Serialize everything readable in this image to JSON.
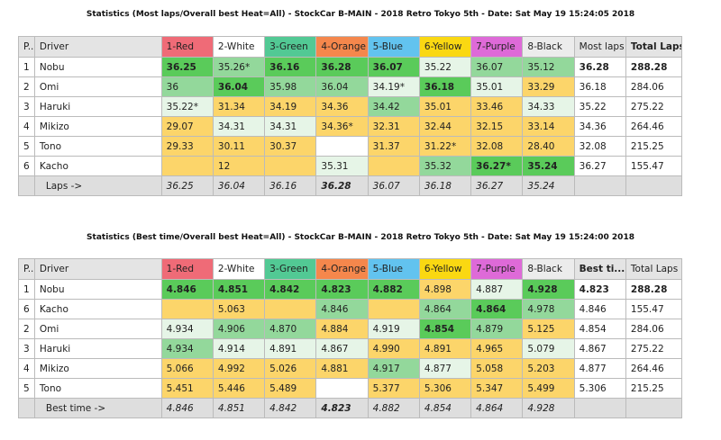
{
  "tables": [
    {
      "title": "Statistics (Most laps/Overall best Heat=All) - StockCar B-MAIN - 2018 Retro Tokyo 5th - Date: Sat May 19 15:24:05 2018",
      "headers": [
        "P...",
        "Driver",
        "1-Red",
        "2-White",
        "3-Green",
        "4-Orange",
        "5-Blue",
        "6-Yellow",
        "7-Purple",
        "8-Black",
        "Most laps",
        "Total Laps"
      ],
      "bold_header": 11,
      "rows": [
        {
          "pos": "1",
          "driver": "Nobu",
          "cells": [
            "36.25",
            "35.26*",
            "36.16",
            "36.28",
            "36.07",
            "35.22",
            "36.07",
            "35.12"
          ],
          "styles": "GMGGGLMM",
          "best": "36.28",
          "total": "288.28",
          "bold": true
        },
        {
          "pos": "2",
          "driver": "Omi",
          "cells": [
            "36",
            "36.04",
            "35.98",
            "36.04",
            "34.19*",
            "36.18",
            "35.01",
            "33.29"
          ],
          "styles": "MGMMLGLY",
          "best": "36.18",
          "total": "284.06"
        },
        {
          "pos": "3",
          "driver": "Haruki",
          "cells": [
            "35.22*",
            "31.34",
            "34.19",
            "34.36",
            "34.42",
            "35.01",
            "33.46",
            "34.33"
          ],
          "styles": "LYYYMYYL",
          "best": "35.22",
          "total": "275.22"
        },
        {
          "pos": "4",
          "driver": "Mikizo",
          "cells": [
            "29.07",
            "34.31",
            "34.31",
            "34.36*",
            "32.31",
            "32.44",
            "32.15",
            "33.14"
          ],
          "styles": "YLLYYYYY",
          "best": "34.36",
          "total": "264.46"
        },
        {
          "pos": "5",
          "driver": "Tono",
          "cells": [
            "29.33",
            "30.11",
            "30.37",
            "",
            "31.37",
            "31.22*",
            "32.08",
            "28.40"
          ],
          "styles": "YYYWYYYY",
          "best": "32.08",
          "total": "215.25"
        },
        {
          "pos": "6",
          "driver": "Kacho",
          "cells": [
            "",
            "12",
            "",
            "35.31",
            "",
            "35.32",
            "36.27*",
            "35.24"
          ],
          "styles": "YYYLYMGG",
          "best": "36.27",
          "total": "155.47"
        }
      ],
      "footer": {
        "label": "Laps ->",
        "values": [
          "36.25",
          "36.04",
          "36.16",
          "36.28",
          "36.07",
          "36.18",
          "36.27",
          "35.24"
        ],
        "bold_index": 3
      }
    },
    {
      "title": "Statistics (Best time/Overall best Heat=All) - StockCar B-MAIN - 2018 Retro Tokyo 5th - Date: Sat May 19 15:24:00 2018",
      "headers": [
        "P...",
        "Driver",
        "1-Red",
        "2-White",
        "3-Green",
        "4-Orange",
        "5-Blue",
        "6-Yellow",
        "7-Purple",
        "8-Black",
        "Best ti...",
        "Total Laps"
      ],
      "bold_header": 10,
      "rows": [
        {
          "pos": "1",
          "driver": "Nobu",
          "cells": [
            "4.846",
            "4.851",
            "4.842",
            "4.823",
            "4.882",
            "4.898",
            "4.887",
            "4.928"
          ],
          "styles": "GGGGGYLG",
          "best": "4.823",
          "total": "288.28",
          "bold": true
        },
        {
          "pos": "6",
          "driver": "Kacho",
          "cells": [
            "",
            "5.063",
            "",
            "4.846",
            "",
            "4.864",
            "4.864",
            "4.978"
          ],
          "styles": "YYYMYMGM",
          "best": "4.846",
          "total": "155.47"
        },
        {
          "pos": "2",
          "driver": "Omi",
          "cells": [
            "4.934",
            "4.906",
            "4.870",
            "4.884",
            "4.919",
            "4.854",
            "4.879",
            "5.125"
          ],
          "styles": "LMMYLGMY",
          "best": "4.854",
          "total": "284.06"
        },
        {
          "pos": "3",
          "driver": "Haruki",
          "cells": [
            "4.934",
            "4.914",
            "4.891",
            "4.867",
            "4.990",
            "4.891",
            "4.965",
            "5.079"
          ],
          "styles": "MLLLYYYL",
          "best": "4.867",
          "total": "275.22"
        },
        {
          "pos": "4",
          "driver": "Mikizo",
          "cells": [
            "5.066",
            "4.992",
            "5.026",
            "4.881",
            "4.917",
            "4.877",
            "5.058",
            "5.203"
          ],
          "styles": "YYYYMLYY",
          "best": "4.877",
          "total": "264.46"
        },
        {
          "pos": "5",
          "driver": "Tono",
          "cells": [
            "5.451",
            "5.446",
            "5.489",
            "",
            "5.377",
            "5.306",
            "5.347",
            "5.499"
          ],
          "styles": "YYYWYYYY",
          "best": "5.306",
          "total": "215.25"
        }
      ],
      "footer": {
        "label": "Best time ->",
        "values": [
          "4.846",
          "4.851",
          "4.842",
          "4.823",
          "4.882",
          "4.854",
          "4.864",
          "4.928"
        ],
        "bold_index": 3
      }
    }
  ]
}
